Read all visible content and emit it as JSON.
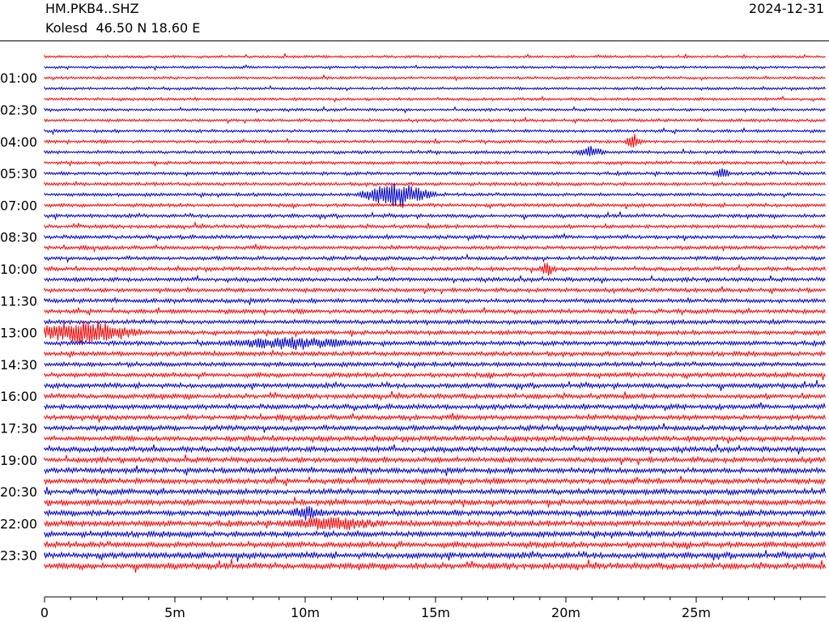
{
  "header": {
    "station": "HM.PKB4..SHZ",
    "location": "Kolesd  46.50 N 18.60 E",
    "date": "2024-12-31"
  },
  "chart_data": {
    "type": "line",
    "description_kind": "helicorder",
    "trace_colors": [
      "#ff0000",
      "#0000cc"
    ],
    "rows": 49,
    "row_interval_minutes": 30,
    "y_tick_labels": [
      "01:00",
      "02:30",
      "04:00",
      "05:30",
      "07:00",
      "08:30",
      "10:00",
      "11:30",
      "13:00",
      "14:30",
      "16:00",
      "17:30",
      "19:00",
      "20:30",
      "22:00",
      "23:30"
    ],
    "x_tick_labels": [
      "0",
      "5m",
      "10m",
      "15m",
      "20m",
      "25m"
    ],
    "x_range_minutes": [
      0,
      30
    ],
    "events": [
      {
        "row": 13,
        "x_minutes": 13.5,
        "amplitude": 2.6,
        "width_minutes": 1.6
      },
      {
        "row": 26,
        "x_minutes": 1.5,
        "amplitude": 2.4,
        "width_minutes": 2.4
      },
      {
        "row": 8,
        "x_minutes": 22.6,
        "amplitude": 1.4,
        "width_minutes": 0.4
      },
      {
        "row": 9,
        "x_minutes": 21.0,
        "amplitude": 1.2,
        "width_minutes": 0.6
      },
      {
        "row": 20,
        "x_minutes": 19.3,
        "amplitude": 1.3,
        "width_minutes": 0.4
      },
      {
        "row": 27,
        "x_minutes": 9.5,
        "amplitude": 1.1,
        "width_minutes": 3.0
      },
      {
        "row": 44,
        "x_minutes": 11.0,
        "amplitude": 1.2,
        "width_minutes": 2.0
      },
      {
        "row": 43,
        "x_minutes": 10.0,
        "amplitude": 1.1,
        "width_minutes": 0.8
      },
      {
        "row": 11,
        "x_minutes": 26.0,
        "amplitude": 1.1,
        "width_minutes": 0.4
      }
    ]
  }
}
